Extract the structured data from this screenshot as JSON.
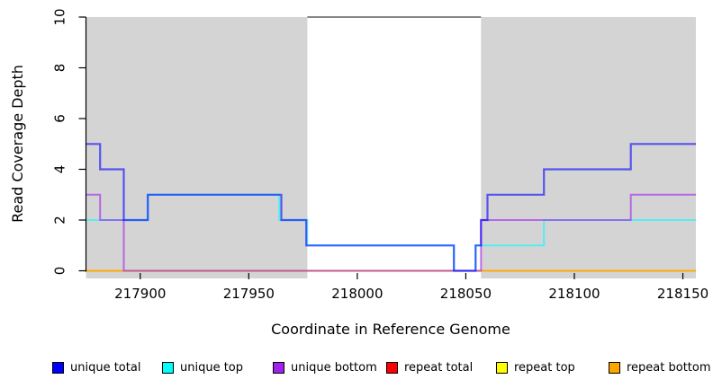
{
  "chart_data": {
    "type": "line",
    "subtype": "step",
    "title": "",
    "xlabel": "Coordinate in Reference Genome",
    "ylabel": "Read Coverage Depth",
    "xlim": [
      217875,
      218156
    ],
    "ylim": [
      0,
      10
    ],
    "x_ticks": [
      217900,
      217950,
      218000,
      218050,
      218100,
      218150
    ],
    "y_ticks": [
      0,
      2,
      4,
      6,
      8,
      10
    ],
    "grid": false,
    "legend_position": "bottom",
    "shaded_regions": [
      {
        "name": "left-shaded-region",
        "from": 217875,
        "to": 217977,
        "color": "#d4d4d4"
      },
      {
        "name": "right-shaded-region",
        "from": 218057,
        "to": 218156,
        "color": "#d4d4d4"
      }
    ],
    "gap_top_line": {
      "y": 10,
      "from": 217977,
      "to": 218057,
      "color": "#3c3c3c"
    },
    "series": [
      {
        "name": "repeat total",
        "color": "#FF0000",
        "alpha": 0.9,
        "width": 1.8,
        "steps": [
          [
            217875,
            0
          ]
        ]
      },
      {
        "name": "repeat top",
        "color": "#FFFF00",
        "alpha": 0.9,
        "width": 1.8,
        "steps": [
          [
            217875,
            0
          ]
        ]
      },
      {
        "name": "repeat bottom",
        "color": "#FFA500",
        "alpha": 0.9,
        "width": 2,
        "steps": [
          [
            217875,
            0
          ]
        ]
      },
      {
        "name": "unique top",
        "color": "#00FFFF",
        "alpha": 0.6,
        "width": 2,
        "steps": [
          [
            217875,
            2
          ],
          [
            217903.5,
            3
          ],
          [
            217964,
            2
          ],
          [
            217977,
            1
          ],
          [
            218044.5,
            0
          ],
          [
            218054.5,
            1
          ],
          [
            218086,
            2
          ]
        ]
      },
      {
        "name": "unique bottom",
        "color": "#A020F0",
        "alpha": 0.6,
        "width": 2,
        "steps": [
          [
            217875,
            3
          ],
          [
            217881.5,
            2
          ],
          [
            217892.4,
            0
          ],
          [
            218057,
            2
          ],
          [
            218126,
            3
          ]
        ]
      },
      {
        "name": "unique total",
        "color": "#0000FF",
        "alpha": 0.6,
        "width": 2.2,
        "steps": [
          [
            217875,
            5
          ],
          [
            217881.5,
            4
          ],
          [
            217892.4,
            2
          ],
          [
            217903.5,
            3
          ],
          [
            217965,
            2
          ],
          [
            217976.5,
            1
          ],
          [
            218044.5,
            0
          ],
          [
            218054.5,
            1
          ],
          [
            218057,
            2
          ],
          [
            218060,
            3
          ],
          [
            218086,
            4
          ],
          [
            218126,
            5
          ]
        ]
      }
    ]
  },
  "legend": {
    "items": [
      {
        "label": "unique total",
        "color": "#0000FF"
      },
      {
        "label": "unique top",
        "color": "#00FFFF"
      },
      {
        "label": "unique bottom",
        "color": "#A020F0"
      },
      {
        "label": "repeat total",
        "color": "#FF0000"
      },
      {
        "label": "repeat top",
        "color": "#FFFF00"
      },
      {
        "label": "repeat bottom",
        "color": "#FFA500"
      }
    ]
  }
}
